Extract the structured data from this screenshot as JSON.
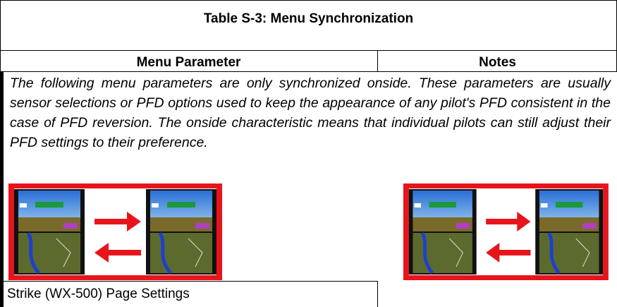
{
  "header": {
    "title": "Table S-3: Menu Synchronization"
  },
  "table": {
    "columns": [
      "Menu Parameter",
      "Notes"
    ],
    "section_note": "The following menu parameters are only synchronized onside. These parameters are usually sensor selections or PFD options used to keep the appearance of any pilot's PFD consistent in the case of PFD reversion. The onside characteristic means that individual pilots can still adjust their PFD settings to their preference.",
    "rows": [
      [
        "Strike (WX-500) Page Settings"
      ]
    ]
  }
}
